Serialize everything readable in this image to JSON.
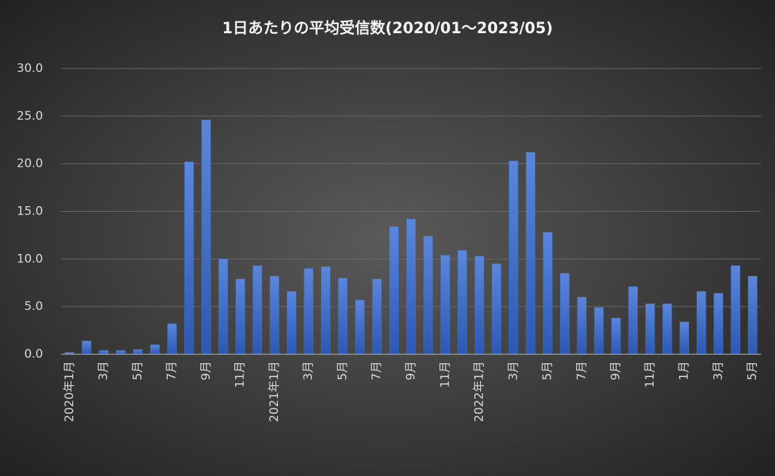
{
  "chart_data": {
    "type": "bar",
    "title": "1日あたりの平均受信数(2020/01～2023/05)",
    "categories": [
      "2020年1月",
      null,
      "3月",
      null,
      "5月",
      null,
      "7月",
      null,
      "9月",
      null,
      "11月",
      null,
      "2021年1月",
      null,
      "3月",
      null,
      "5月",
      null,
      "7月",
      null,
      "9月",
      null,
      "11月",
      null,
      "2022年1月",
      null,
      "3月",
      null,
      "5月",
      null,
      "7月",
      null,
      "9月",
      null,
      "11月",
      null,
      "1月",
      null,
      "3月",
      null,
      "5月"
    ],
    "values": [
      0.2,
      1.4,
      0.4,
      0.4,
      0.5,
      1.0,
      3.2,
      20.2,
      24.6,
      10.0,
      7.9,
      9.3,
      8.2,
      6.6,
      9.0,
      9.2,
      8.0,
      5.7,
      7.9,
      13.4,
      14.2,
      12.4,
      10.4,
      10.9,
      10.3,
      9.5,
      20.3,
      21.2,
      12.8,
      8.5,
      6.0,
      4.9,
      3.8,
      7.1,
      5.3,
      5.3,
      3.4,
      6.6,
      6.4,
      9.3,
      8.2
    ],
    "color": "#4472c4",
    "ylim": [
      0,
      30
    ],
    "yticks": [
      {
        "value": 0,
        "label": "0.0"
      },
      {
        "value": 5,
        "label": "5.0"
      },
      {
        "value": 10,
        "label": "10.0"
      },
      {
        "value": 15,
        "label": "15.0"
      },
      {
        "value": 20,
        "label": "20.0"
      },
      {
        "value": 25,
        "label": "25.0"
      },
      {
        "value": 30,
        "label": "30.0"
      }
    ],
    "grid": true
  }
}
